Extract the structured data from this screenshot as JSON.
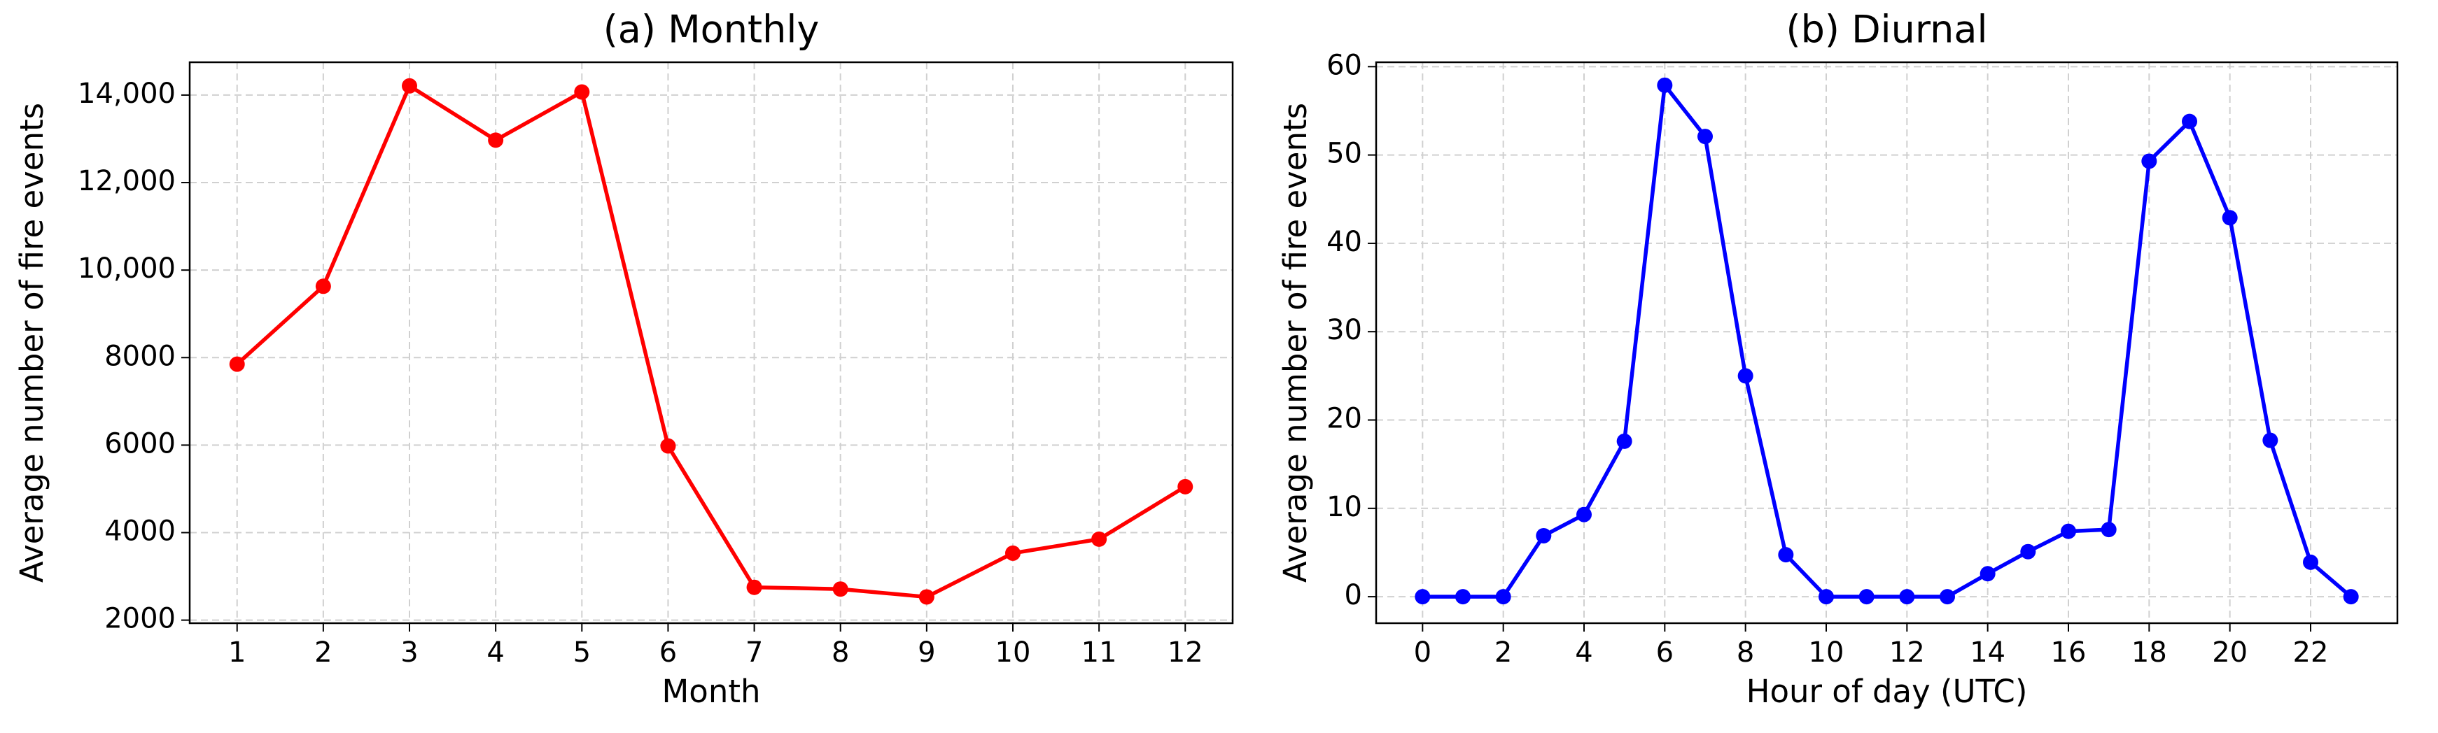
{
  "chart_data": [
    {
      "type": "line",
      "title": "(a) Monthly",
      "xlabel": "Month",
      "ylabel": "Average number of fire events",
      "x": [
        1,
        2,
        3,
        4,
        5,
        6,
        7,
        8,
        9,
        10,
        11,
        12
      ],
      "series": [
        {
          "name": "Monthly",
          "color": "#ff0000",
          "values": [
            7850,
            9630,
            14210,
            12970,
            14070,
            5980,
            2750,
            2710,
            2530,
            3530,
            3850,
            5050
          ]
        }
      ],
      "xlim": [
        0.45,
        12.55
      ],
      "xticks": [
        1,
        2,
        3,
        4,
        5,
        6,
        7,
        8,
        9,
        10,
        11,
        12
      ],
      "ylim": [
        1930,
        14750
      ],
      "yticks": [
        2000,
        4000,
        6000,
        8000,
        {
          "value": 10000,
          "label": "10,000"
        },
        {
          "value": 12000,
          "label": "12,000"
        },
        {
          "value": 14000,
          "label": "14,000"
        }
      ],
      "grid": true
    },
    {
      "type": "line",
      "title": "(b) Diurnal",
      "xlabel": "Hour of day (UTC)",
      "ylabel": "Average number of fire events",
      "x": [
        0,
        1,
        2,
        3,
        4,
        5,
        6,
        7,
        8,
        9,
        10,
        11,
        12,
        13,
        14,
        15,
        16,
        17,
        18,
        19,
        20,
        21,
        22,
        23
      ],
      "series": [
        {
          "name": "Diurnal",
          "color": "#0000ff",
          "values": [
            0,
            0,
            0,
            6.9,
            9.3,
            17.6,
            57.9,
            52.1,
            25,
            4.75,
            0,
            0,
            0,
            0,
            2.6,
            5.1,
            7.4,
            7.6,
            49.3,
            53.8,
            42.9,
            17.7,
            3.9,
            0
          ]
        }
      ],
      "xlim": [
        -1.15,
        24.15
      ],
      "xticks": [
        0,
        2,
        4,
        6,
        8,
        10,
        12,
        14,
        16,
        18,
        20,
        22
      ],
      "ylim": [
        -3,
        60.5
      ],
      "yticks": [
        0,
        10,
        20,
        30,
        40,
        50,
        60
      ],
      "grid": true
    }
  ]
}
